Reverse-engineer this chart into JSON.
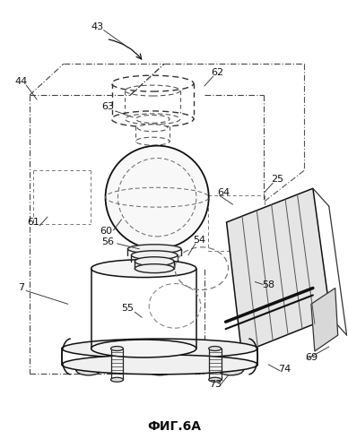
{
  "title": "ФИГ.6А",
  "title_fontsize": 10,
  "title_fontweight": "bold",
  "bg_color": "#ffffff",
  "line_color": "#111111"
}
